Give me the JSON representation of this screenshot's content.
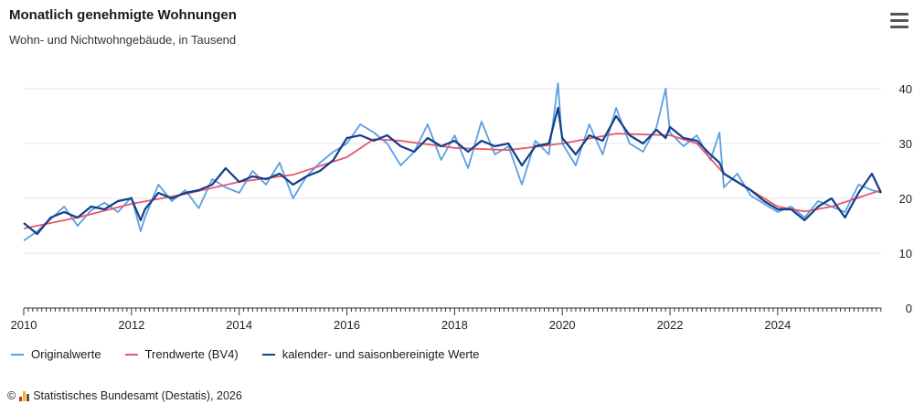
{
  "header": {
    "title": "Monatlich genehmigte Wohnungen",
    "subtitle": "Wohn- und Nichtwohngebäude, in Tausend"
  },
  "menu": {
    "icon": "hamburger-menu-icon"
  },
  "credit": {
    "copyright": "©",
    "logo_icon": "destatis-logo-icon",
    "text": "Statistisches Bundesamt (Destatis), 2026"
  },
  "colors": {
    "original": "#5b9fe3",
    "trend": "#e8576e",
    "adjusted": "#123f88",
    "grid": "#e6e6e6",
    "axis": "#333333"
  },
  "chart_data": {
    "type": "line",
    "title": "Monatlich genehmigte Wohnungen",
    "subtitle": "Wohn- und Nichtwohngebäude, in Tausend",
    "xlabel": "",
    "ylabel": "",
    "xlim": [
      2010,
      2025.92
    ],
    "ylim": [
      0,
      40
    ],
    "y_axis_side": "right",
    "grid": true,
    "legend_position": "bottom",
    "x_ticks": [
      2010,
      2012,
      2014,
      2016,
      2018,
      2020,
      2022,
      2024
    ],
    "y_ticks": [
      0,
      10,
      20,
      30,
      40
    ],
    "series": [
      {
        "name": "Originalwerte",
        "color": "#5b9fe3",
        "points": [
          [
            2010.0,
            12.3
          ],
          [
            2010.25,
            14.0
          ],
          [
            2010.5,
            16.2
          ],
          [
            2010.75,
            18.5
          ],
          [
            2011.0,
            15.0
          ],
          [
            2011.25,
            17.8
          ],
          [
            2011.5,
            19.2
          ],
          [
            2011.75,
            17.5
          ],
          [
            2012.0,
            20.2
          ],
          [
            2012.17,
            14.0
          ],
          [
            2012.25,
            16.5
          ],
          [
            2012.5,
            22.5
          ],
          [
            2012.75,
            19.5
          ],
          [
            2013.0,
            21.5
          ],
          [
            2013.25,
            18.2
          ],
          [
            2013.5,
            23.5
          ],
          [
            2013.75,
            22.0
          ],
          [
            2014.0,
            21.0
          ],
          [
            2014.25,
            25.0
          ],
          [
            2014.5,
            22.5
          ],
          [
            2014.75,
            26.5
          ],
          [
            2015.0,
            20.0
          ],
          [
            2015.25,
            24.0
          ],
          [
            2015.5,
            26.5
          ],
          [
            2015.75,
            28.5
          ],
          [
            2016.0,
            30.0
          ],
          [
            2016.25,
            33.5
          ],
          [
            2016.5,
            32.0
          ],
          [
            2016.75,
            30.0
          ],
          [
            2017.0,
            26.0
          ],
          [
            2017.25,
            28.5
          ],
          [
            2017.5,
            33.5
          ],
          [
            2017.75,
            27.0
          ],
          [
            2018.0,
            31.5
          ],
          [
            2018.25,
            25.5
          ],
          [
            2018.5,
            34.0
          ],
          [
            2018.75,
            28.0
          ],
          [
            2019.0,
            29.5
          ],
          [
            2019.25,
            22.5
          ],
          [
            2019.5,
            30.5
          ],
          [
            2019.75,
            28.0
          ],
          [
            2019.92,
            41.0
          ],
          [
            2020.0,
            30.0
          ],
          [
            2020.25,
            26.0
          ],
          [
            2020.5,
            33.5
          ],
          [
            2020.75,
            28.0
          ],
          [
            2021.0,
            36.5
          ],
          [
            2021.25,
            30.0
          ],
          [
            2021.5,
            28.5
          ],
          [
            2021.75,
            33.0
          ],
          [
            2021.92,
            40.0
          ],
          [
            2022.0,
            32.0
          ],
          [
            2022.25,
            29.5
          ],
          [
            2022.5,
            31.5
          ],
          [
            2022.75,
            27.0
          ],
          [
            2022.92,
            32.0
          ],
          [
            2023.0,
            22.0
          ],
          [
            2023.25,
            24.5
          ],
          [
            2023.5,
            20.5
          ],
          [
            2023.75,
            19.0
          ],
          [
            2024.0,
            17.5
          ],
          [
            2024.25,
            18.5
          ],
          [
            2024.5,
            16.5
          ],
          [
            2024.75,
            19.5
          ],
          [
            2025.0,
            18.5
          ],
          [
            2025.25,
            17.5
          ],
          [
            2025.5,
            22.5
          ],
          [
            2025.75,
            21.5
          ],
          [
            2025.92,
            21.0
          ]
        ]
      },
      {
        "name": "Trendwerte (BV4)",
        "color": "#e8576e",
        "points": [
          [
            2010.0,
            14.5
          ],
          [
            2011.0,
            16.5
          ],
          [
            2012.0,
            19.0
          ],
          [
            2013.0,
            20.8
          ],
          [
            2014.0,
            23.0
          ],
          [
            2015.0,
            24.3
          ],
          [
            2016.0,
            27.5
          ],
          [
            2016.5,
            30.8
          ],
          [
            2017.0,
            30.5
          ],
          [
            2018.0,
            29.2
          ],
          [
            2019.0,
            28.8
          ],
          [
            2020.0,
            30.0
          ],
          [
            2021.0,
            31.8
          ],
          [
            2022.0,
            31.5
          ],
          [
            2022.5,
            30.0
          ],
          [
            2023.0,
            24.5
          ],
          [
            2024.0,
            18.5
          ],
          [
            2024.5,
            17.6
          ],
          [
            2025.0,
            18.5
          ],
          [
            2025.92,
            21.5
          ]
        ]
      },
      {
        "name": "kalender- und saisonbereinigte Werte",
        "color": "#123f88",
        "points": [
          [
            2010.0,
            15.5
          ],
          [
            2010.25,
            13.5
          ],
          [
            2010.5,
            16.5
          ],
          [
            2010.75,
            17.5
          ],
          [
            2011.0,
            16.5
          ],
          [
            2011.25,
            18.5
          ],
          [
            2011.5,
            18.0
          ],
          [
            2011.75,
            19.5
          ],
          [
            2012.0,
            20.0
          ],
          [
            2012.17,
            16.0
          ],
          [
            2012.25,
            18.0
          ],
          [
            2012.5,
            21.0
          ],
          [
            2012.75,
            20.0
          ],
          [
            2013.0,
            21.0
          ],
          [
            2013.25,
            21.5
          ],
          [
            2013.5,
            22.5
          ],
          [
            2013.75,
            25.5
          ],
          [
            2014.0,
            23.0
          ],
          [
            2014.25,
            24.0
          ],
          [
            2014.5,
            23.5
          ],
          [
            2014.75,
            24.5
          ],
          [
            2015.0,
            22.5
          ],
          [
            2015.25,
            24.0
          ],
          [
            2015.5,
            25.0
          ],
          [
            2015.75,
            27.0
          ],
          [
            2016.0,
            31.0
          ],
          [
            2016.25,
            31.5
          ],
          [
            2016.5,
            30.5
          ],
          [
            2016.75,
            31.5
          ],
          [
            2017.0,
            29.5
          ],
          [
            2017.25,
            28.5
          ],
          [
            2017.5,
            31.0
          ],
          [
            2017.75,
            29.5
          ],
          [
            2018.0,
            30.5
          ],
          [
            2018.25,
            28.5
          ],
          [
            2018.5,
            30.5
          ],
          [
            2018.75,
            29.5
          ],
          [
            2019.0,
            30.0
          ],
          [
            2019.25,
            26.0
          ],
          [
            2019.5,
            29.5
          ],
          [
            2019.75,
            30.0
          ],
          [
            2019.92,
            36.5
          ],
          [
            2020.0,
            31.0
          ],
          [
            2020.25,
            28.0
          ],
          [
            2020.5,
            31.5
          ],
          [
            2020.75,
            30.5
          ],
          [
            2021.0,
            35.0
          ],
          [
            2021.25,
            31.5
          ],
          [
            2021.5,
            30.0
          ],
          [
            2021.75,
            32.5
          ],
          [
            2021.92,
            31.0
          ],
          [
            2022.0,
            33.0
          ],
          [
            2022.25,
            31.0
          ],
          [
            2022.5,
            30.5
          ],
          [
            2022.75,
            28.0
          ],
          [
            2022.92,
            26.5
          ],
          [
            2023.0,
            24.5
          ],
          [
            2023.25,
            23.0
          ],
          [
            2023.5,
            21.5
          ],
          [
            2023.75,
            19.5
          ],
          [
            2024.0,
            18.0
          ],
          [
            2024.25,
            18.0
          ],
          [
            2024.5,
            16.0
          ],
          [
            2024.75,
            18.5
          ],
          [
            2025.0,
            20.0
          ],
          [
            2025.25,
            16.5
          ],
          [
            2025.5,
            21.0
          ],
          [
            2025.75,
            24.5
          ],
          [
            2025.92,
            21.0
          ]
        ]
      }
    ]
  }
}
